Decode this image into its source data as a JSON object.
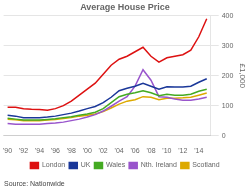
{
  "chart_data": {
    "type": "line",
    "title": "Average House Price",
    "y_label": "£1,000",
    "annotations": [
      "Source: Nationwide"
    ],
    "x": [
      1990,
      1991,
      1992,
      1993,
      1994,
      1995,
      1996,
      1997,
      1998,
      1999,
      2000,
      2001,
      2002,
      2003,
      2004,
      2005,
      2006,
      2007,
      2008,
      2009,
      2010,
      2011,
      2012,
      2013,
      2014,
      2015
    ],
    "series": [
      {
        "name": "London",
        "color": "#dd1111",
        "values": [
          95,
          95,
          90,
          88,
          87,
          85,
          90,
          100,
          115,
          135,
          155,
          175,
          205,
          235,
          255,
          265,
          280,
          295,
          265,
          245,
          260,
          265,
          270,
          285,
          330,
          390
        ]
      },
      {
        "name": "UK",
        "color": "#1a3799",
        "values": [
          68,
          65,
          60,
          60,
          60,
          62,
          65,
          70,
          75,
          82,
          90,
          97,
          110,
          128,
          150,
          158,
          165,
          175,
          165,
          155,
          163,
          162,
          162,
          165,
          178,
          190
        ]
      },
      {
        "name": "Wales",
        "color": "#44aa22",
        "values": [
          58,
          55,
          52,
          52,
          52,
          54,
          56,
          60,
          63,
          68,
          72,
          78,
          90,
          110,
          130,
          138,
          143,
          150,
          143,
          133,
          138,
          135,
          135,
          138,
          148,
          155
        ]
      },
      {
        "name": "Nth. Ireland",
        "color": "#9955cc",
        "values": [
          40,
          38,
          38,
          38,
          38,
          40,
          42,
          45,
          50,
          55,
          62,
          70,
          82,
          98,
          115,
          130,
          165,
          220,
          185,
          130,
          128,
          122,
          118,
          118,
          122,
          128
        ]
      },
      {
        "name": "Scotland",
        "color": "#ddaa00",
        "values": [
          55,
          53,
          50,
          50,
          50,
          52,
          54,
          57,
          60,
          65,
          68,
          72,
          80,
          92,
          105,
          115,
          120,
          130,
          128,
          120,
          125,
          125,
          126,
          128,
          135,
          142
        ]
      }
    ],
    "xlim": [
      1989.5,
      2015.5
    ],
    "xticks": [
      {
        "value": 1990,
        "label": "'90"
      },
      {
        "value": 1992,
        "label": "'92"
      },
      {
        "value": 1994,
        "label": "'94"
      },
      {
        "value": 1996,
        "label": "'96"
      },
      {
        "value": 1998,
        "label": "'98"
      },
      {
        "value": 2000,
        "label": "'00"
      },
      {
        "value": 2002,
        "label": "'02"
      },
      {
        "value": 2004,
        "label": "'04"
      },
      {
        "value": 2006,
        "label": "'06"
      },
      {
        "value": 2008,
        "label": "'08"
      },
      {
        "value": 2010,
        "label": "'10"
      },
      {
        "value": 2012,
        "label": "'12"
      },
      {
        "value": 2014,
        "label": "'14"
      }
    ],
    "ylim": [
      0,
      400
    ],
    "yticks": [
      0,
      100,
      200,
      300,
      400
    ],
    "grid": "y",
    "legend": "bottom"
  }
}
